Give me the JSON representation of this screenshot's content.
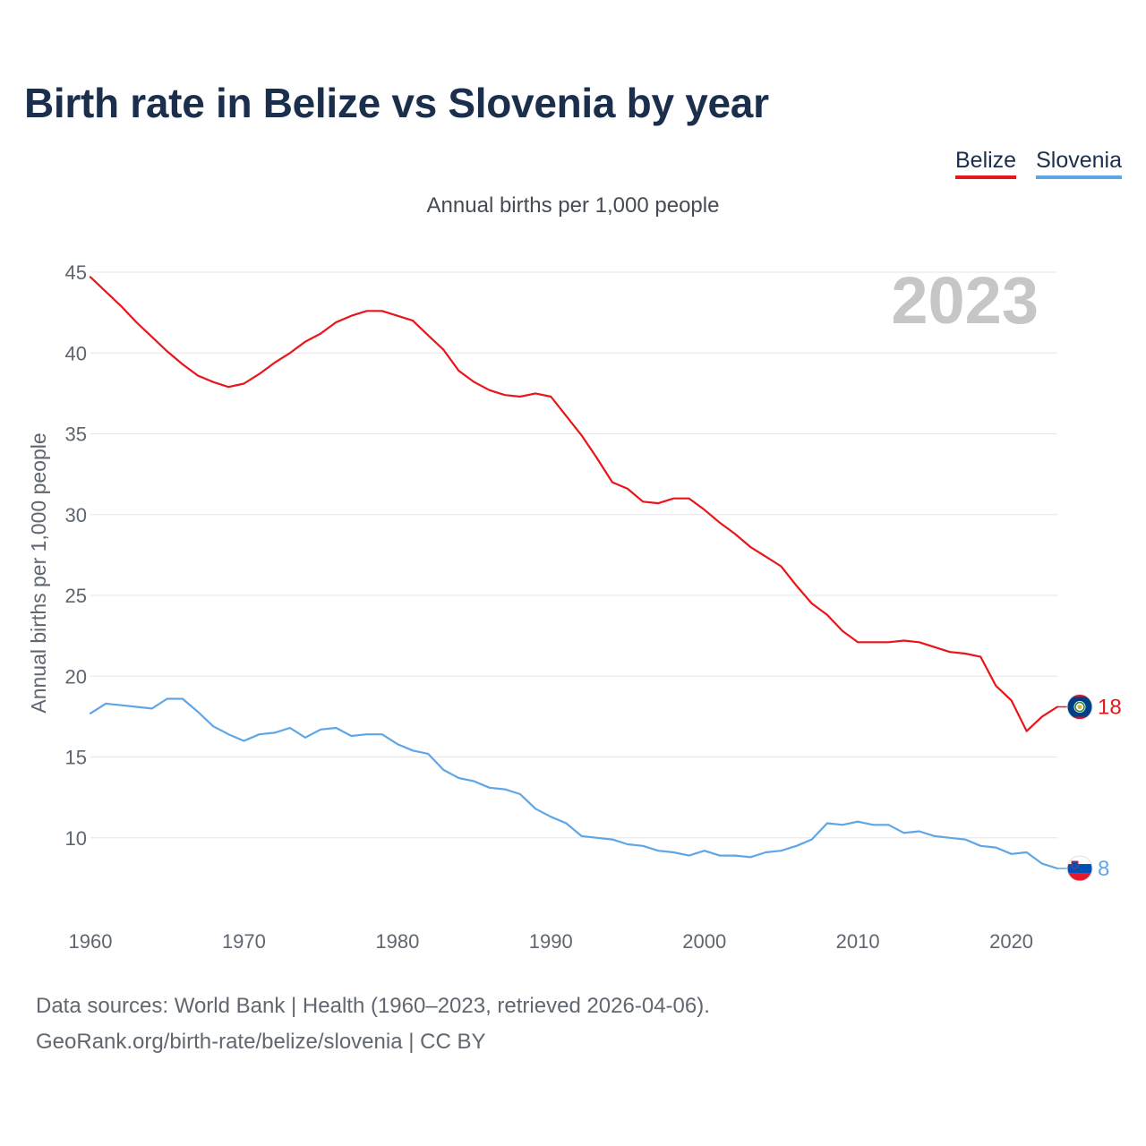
{
  "title": "Birth rate in Belize vs Slovenia by year",
  "legend": [
    {
      "label": "Belize",
      "color": "#e8151b"
    },
    {
      "label": "Slovenia",
      "color": "#5ea6e6"
    }
  ],
  "subtitle": "Annual births per 1,000 people",
  "footer": {
    "line1": "Data sources: World Bank | Health (1960–2023, retrieved 2026-04-06).",
    "line2": "GeoRank.org/birth-rate/belize/slovenia | CC BY"
  },
  "chart_data": {
    "type": "line",
    "title": "Birth rate in Belize vs Slovenia by year",
    "xlabel": "",
    "ylabel": "Annual births per 1,000 people",
    "watermark_year": "2023",
    "xlim": [
      1960,
      2023
    ],
    "ylim": [
      5,
      45
    ],
    "x_ticks": [
      1960,
      1970,
      1980,
      1990,
      2000,
      2010,
      2020
    ],
    "y_ticks": [
      10,
      15,
      20,
      25,
      30,
      35,
      40,
      45
    ],
    "grid": true,
    "legend_position": "top-right",
    "x": [
      1960,
      1961,
      1962,
      1963,
      1964,
      1965,
      1966,
      1967,
      1968,
      1969,
      1970,
      1971,
      1972,
      1973,
      1974,
      1975,
      1976,
      1977,
      1978,
      1979,
      1980,
      1981,
      1982,
      1983,
      1984,
      1985,
      1986,
      1987,
      1988,
      1989,
      1990,
      1991,
      1992,
      1993,
      1994,
      1995,
      1996,
      1997,
      1998,
      1999,
      2000,
      2001,
      2002,
      2003,
      2004,
      2005,
      2006,
      2007,
      2008,
      2009,
      2010,
      2011,
      2012,
      2013,
      2014,
      2015,
      2016,
      2017,
      2018,
      2019,
      2020,
      2021,
      2022,
      2023
    ],
    "series": [
      {
        "name": "Belize",
        "color": "#e8151b",
        "end_label": "18",
        "flag": "belize-flag",
        "values": [
          44.7,
          43.8,
          42.9,
          41.9,
          41.0,
          40.1,
          39.3,
          38.6,
          38.2,
          37.9,
          38.1,
          38.7,
          39.4,
          40.0,
          40.7,
          41.2,
          41.9,
          42.3,
          42.6,
          42.6,
          42.3,
          42.0,
          41.1,
          40.2,
          38.9,
          38.2,
          37.7,
          37.4,
          37.3,
          37.5,
          37.3,
          36.1,
          34.9,
          33.5,
          32.0,
          31.6,
          30.8,
          30.7,
          31.0,
          31.0,
          30.3,
          29.5,
          28.8,
          28.0,
          27.4,
          26.8,
          25.6,
          24.5,
          23.8,
          22.8,
          22.1,
          22.1,
          22.1,
          22.2,
          22.1,
          21.8,
          21.5,
          21.4,
          21.2,
          19.4,
          18.5,
          16.6,
          17.5,
          18.1
        ]
      },
      {
        "name": "Slovenia",
        "color": "#5ea6e6",
        "end_label": "8",
        "flag": "slovenia-flag",
        "values": [
          17.7,
          18.3,
          18.2,
          18.1,
          18.0,
          18.6,
          18.6,
          17.8,
          16.9,
          16.4,
          16.0,
          16.4,
          16.5,
          16.8,
          16.2,
          16.7,
          16.8,
          16.3,
          16.4,
          16.4,
          15.8,
          15.4,
          15.2,
          14.2,
          13.7,
          13.5,
          13.1,
          13.0,
          12.7,
          11.8,
          11.3,
          10.9,
          10.1,
          10.0,
          9.9,
          9.6,
          9.5,
          9.2,
          9.1,
          8.9,
          9.2,
          8.9,
          8.9,
          8.8,
          9.1,
          9.2,
          9.5,
          9.9,
          10.9,
          10.8,
          11.0,
          10.8,
          10.8,
          10.3,
          10.4,
          10.1,
          10.0,
          9.9,
          9.5,
          9.4,
          9.0,
          9.1,
          8.4,
          8.1
        ]
      }
    ]
  }
}
